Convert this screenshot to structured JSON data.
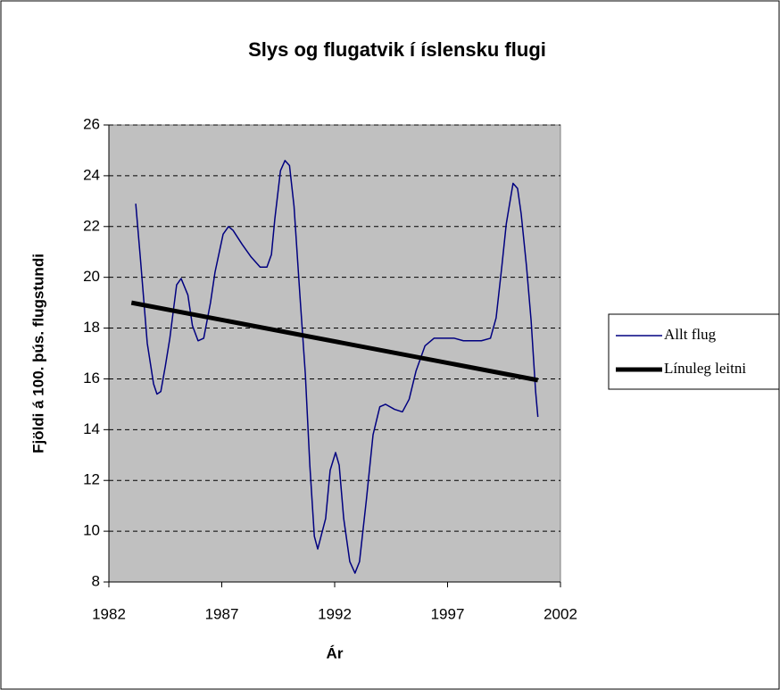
{
  "chart_data": {
    "type": "line",
    "title": "Slys og flugatvik í íslensku flugi",
    "x_label": "Ár",
    "y_label": "Fjöldi á 100. þús. flugstundi",
    "xlim": [
      1982,
      2002
    ],
    "xticks": [
      1982,
      1987,
      1992,
      1997,
      2002
    ],
    "ylim": [
      8,
      26
    ],
    "yticks": [
      8,
      10,
      12,
      14,
      16,
      18,
      20,
      22,
      24,
      26
    ],
    "grid": true,
    "background": "#c0c0c0",
    "legend": "right",
    "series": [
      {
        "name": "Allt flug",
        "color": "#000080",
        "line_width": 1.5,
        "x": [
          1983.19,
          1983.4,
          1983.7,
          1983.98,
          1984.13,
          1984.3,
          1984.5,
          1984.7,
          1985.0,
          1985.2,
          1985.5,
          1985.7,
          1985.95,
          1986.2,
          1986.5,
          1986.7,
          1987.06,
          1987.3,
          1987.5,
          1987.9,
          1988.3,
          1988.7,
          1989.0,
          1989.2,
          1989.35,
          1989.6,
          1989.8,
          1990.0,
          1990.2,
          1990.46,
          1990.7,
          1990.9,
          1991.1,
          1991.25,
          1991.6,
          1991.8,
          1992.04,
          1992.2,
          1992.4,
          1992.67,
          1992.9,
          1993.1,
          1993.4,
          1993.7,
          1994.0,
          1994.25,
          1994.65,
          1995.0,
          1995.3,
          1995.6,
          1996.0,
          1996.4,
          1996.9,
          1997.3,
          1997.7,
          1998.5,
          1998.9,
          1999.15,
          1999.4,
          1999.6,
          1999.9,
          2000.1,
          2000.26,
          2000.5,
          2000.7,
          2000.9,
          2001.0
        ],
        "values": [
          22.9,
          20.7,
          17.4,
          15.8,
          15.4,
          15.5,
          16.5,
          17.6,
          19.7,
          19.95,
          19.3,
          18.1,
          17.5,
          17.6,
          19.0,
          20.2,
          21.7,
          22.0,
          21.85,
          21.3,
          20.8,
          20.4,
          20.4,
          20.9,
          22.3,
          24.2,
          24.6,
          24.4,
          22.8,
          19.3,
          16.2,
          12.6,
          9.8,
          9.3,
          10.5,
          12.4,
          13.1,
          12.6,
          10.5,
          8.8,
          8.35,
          8.8,
          11.2,
          13.8,
          14.9,
          15.0,
          14.8,
          14.7,
          15.2,
          16.3,
          17.3,
          17.6,
          17.6,
          17.6,
          17.5,
          17.5,
          17.6,
          18.4,
          20.4,
          22.1,
          23.7,
          23.5,
          22.5,
          20.4,
          18.3,
          15.5,
          14.5
        ]
      },
      {
        "name": "Línuleg leitni",
        "color": "#000000",
        "line_width": 5,
        "x": [
          1983,
          2001
        ],
        "values": [
          19.0,
          15.95
        ]
      }
    ]
  }
}
